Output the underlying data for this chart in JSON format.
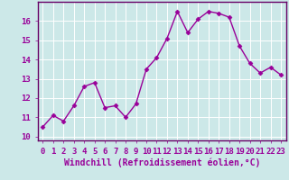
{
  "x": [
    0,
    1,
    2,
    3,
    4,
    5,
    6,
    7,
    8,
    9,
    10,
    11,
    12,
    13,
    14,
    15,
    16,
    17,
    18,
    19,
    20,
    21,
    22,
    23
  ],
  "y": [
    10.5,
    11.1,
    10.8,
    11.6,
    12.6,
    12.8,
    11.5,
    11.6,
    11.0,
    11.7,
    13.5,
    14.1,
    15.1,
    16.5,
    15.4,
    16.1,
    16.5,
    16.4,
    16.2,
    14.7,
    13.8,
    13.3,
    13.6,
    13.2
  ],
  "line_color": "#990099",
  "marker": "D",
  "marker_size": 2.5,
  "bg_color": "#cce8e8",
  "grid_color": "#b0d8d8",
  "xlabel": "Windchill (Refroidissement éolien,°C)",
  "ylim": [
    9.8,
    17.0
  ],
  "xlim": [
    -0.5,
    23.5
  ],
  "yticks": [
    10,
    11,
    12,
    13,
    14,
    15,
    16
  ],
  "xticks": [
    0,
    1,
    2,
    3,
    4,
    5,
    6,
    7,
    8,
    9,
    10,
    11,
    12,
    13,
    14,
    15,
    16,
    17,
    18,
    19,
    20,
    21,
    22,
    23
  ],
  "tick_color": "#990099",
  "label_color": "#990099",
  "spine_color": "#660066",
  "font_size": 6.5,
  "xlabel_font_size": 7,
  "line_width": 1.0
}
